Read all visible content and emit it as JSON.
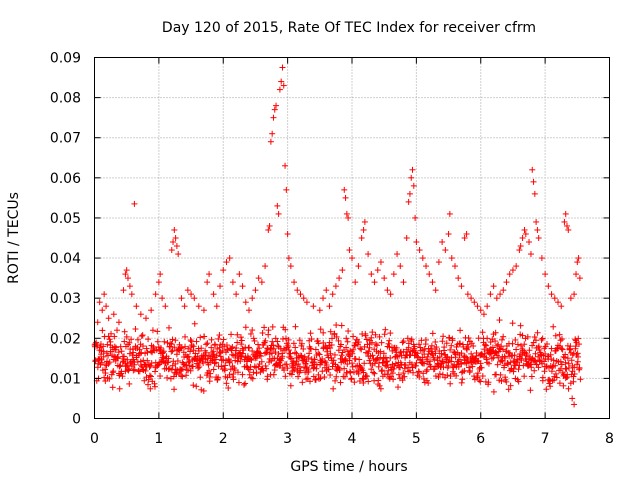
{
  "chart_data": {
    "type": "scatter",
    "title": "Day 120 of 2015, Rate Of TEC Index for receiver cfrm",
    "xlabel": "GPS time / hours",
    "ylabel": "ROTI / TECUs",
    "xlim": [
      0,
      8
    ],
    "ylim": [
      0,
      0.09
    ],
    "xticks": [
      0,
      1,
      2,
      3,
      4,
      5,
      6,
      7,
      8
    ],
    "xtick_labels": [
      "0",
      "1",
      "2",
      "3",
      "4",
      "5",
      "6",
      "7",
      "8"
    ],
    "yticks": [
      0,
      0.01,
      0.02,
      0.03,
      0.04,
      0.05,
      0.06,
      0.07,
      0.08,
      0.09
    ],
    "ytick_labels": [
      "0",
      "0.01",
      "0.02",
      "0.03",
      "0.04",
      "0.05",
      "0.06",
      "0.07",
      "0.08",
      "0.09"
    ],
    "grid": true,
    "marker": "plus",
    "color": "#ff0000",
    "series": [
      {
        "name": "ROTI",
        "x_range": [
          0.0,
          7.55
        ],
        "background_band": [
          0.006,
          0.024
        ],
        "points": [
          [
            0.05,
            0.024
          ],
          [
            0.08,
            0.029
          ],
          [
            0.12,
            0.027
          ],
          [
            0.15,
            0.031
          ],
          [
            0.18,
            0.028
          ],
          [
            0.22,
            0.025
          ],
          [
            0.3,
            0.026
          ],
          [
            0.38,
            0.024
          ],
          [
            0.45,
            0.032
          ],
          [
            0.48,
            0.036
          ],
          [
            0.5,
            0.037
          ],
          [
            0.52,
            0.035
          ],
          [
            0.55,
            0.033
          ],
          [
            0.58,
            0.031
          ],
          [
            0.62,
            0.0535
          ],
          [
            0.65,
            0.028
          ],
          [
            0.72,
            0.026
          ],
          [
            0.8,
            0.025
          ],
          [
            0.88,
            0.027
          ],
          [
            0.95,
            0.031
          ],
          [
            1.0,
            0.034
          ],
          [
            1.02,
            0.036
          ],
          [
            1.05,
            0.03
          ],
          [
            1.1,
            0.028
          ],
          [
            1.2,
            0.042
          ],
          [
            1.22,
            0.044
          ],
          [
            1.24,
            0.047
          ],
          [
            1.26,
            0.045
          ],
          [
            1.28,
            0.043
          ],
          [
            1.3,
            0.041
          ],
          [
            1.35,
            0.03
          ],
          [
            1.4,
            0.028
          ],
          [
            1.45,
            0.032
          ],
          [
            1.5,
            0.031
          ],
          [
            1.55,
            0.03
          ],
          [
            1.62,
            0.028
          ],
          [
            1.7,
            0.027
          ],
          [
            1.75,
            0.034
          ],
          [
            1.78,
            0.036
          ],
          [
            1.85,
            0.031
          ],
          [
            1.9,
            0.028
          ],
          [
            1.95,
            0.033
          ],
          [
            2.0,
            0.037
          ],
          [
            2.05,
            0.039
          ],
          [
            2.1,
            0.04
          ],
          [
            2.15,
            0.034
          ],
          [
            2.2,
            0.031
          ],
          [
            2.25,
            0.036
          ],
          [
            2.3,
            0.033
          ],
          [
            2.35,
            0.029
          ],
          [
            2.4,
            0.027
          ],
          [
            2.45,
            0.03
          ],
          [
            2.5,
            0.032
          ],
          [
            2.55,
            0.035
          ],
          [
            2.6,
            0.034
          ],
          [
            2.65,
            0.038
          ],
          [
            2.7,
            0.047
          ],
          [
            2.72,
            0.048
          ],
          [
            2.74,
            0.069
          ],
          [
            2.76,
            0.071
          ],
          [
            2.78,
            0.075
          ],
          [
            2.8,
            0.077
          ],
          [
            2.82,
            0.078
          ],
          [
            2.84,
            0.053
          ],
          [
            2.86,
            0.051
          ],
          [
            2.88,
            0.082
          ],
          [
            2.9,
            0.084
          ],
          [
            2.92,
            0.0875
          ],
          [
            2.94,
            0.083
          ],
          [
            2.96,
            0.063
          ],
          [
            2.98,
            0.057
          ],
          [
            3.0,
            0.046
          ],
          [
            3.02,
            0.04
          ],
          [
            3.05,
            0.038
          ],
          [
            3.1,
            0.034
          ],
          [
            3.15,
            0.032
          ],
          [
            3.2,
            0.031
          ],
          [
            3.25,
            0.03
          ],
          [
            3.3,
            0.029
          ],
          [
            3.4,
            0.028
          ],
          [
            3.5,
            0.027
          ],
          [
            3.55,
            0.03
          ],
          [
            3.6,
            0.032
          ],
          [
            3.65,
            0.028
          ],
          [
            3.7,
            0.031
          ],
          [
            3.75,
            0.033
          ],
          [
            3.8,
            0.035
          ],
          [
            3.85,
            0.037
          ],
          [
            3.88,
            0.057
          ],
          [
            3.9,
            0.055
          ],
          [
            3.92,
            0.051
          ],
          [
            3.94,
            0.05
          ],
          [
            3.96,
            0.042
          ],
          [
            4.0,
            0.04
          ],
          [
            4.05,
            0.034
          ],
          [
            4.1,
            0.038
          ],
          [
            4.15,
            0.045
          ],
          [
            4.18,
            0.047
          ],
          [
            4.2,
            0.049
          ],
          [
            4.25,
            0.041
          ],
          [
            4.3,
            0.036
          ],
          [
            4.35,
            0.034
          ],
          [
            4.4,
            0.037
          ],
          [
            4.45,
            0.039
          ],
          [
            4.5,
            0.035
          ],
          [
            4.55,
            0.032
          ],
          [
            4.6,
            0.031
          ],
          [
            4.65,
            0.036
          ],
          [
            4.7,
            0.041
          ],
          [
            4.75,
            0.038
          ],
          [
            4.8,
            0.034
          ],
          [
            4.85,
            0.045
          ],
          [
            4.88,
            0.054
          ],
          [
            4.9,
            0.056
          ],
          [
            4.92,
            0.06
          ],
          [
            4.94,
            0.062
          ],
          [
            4.96,
            0.058
          ],
          [
            4.98,
            0.05
          ],
          [
            5.0,
            0.044
          ],
          [
            5.05,
            0.042
          ],
          [
            5.1,
            0.04
          ],
          [
            5.15,
            0.038
          ],
          [
            5.2,
            0.036
          ],
          [
            5.25,
            0.034
          ],
          [
            5.3,
            0.032
          ],
          [
            5.35,
            0.039
          ],
          [
            5.4,
            0.044
          ],
          [
            5.45,
            0.042
          ],
          [
            5.5,
            0.046
          ],
          [
            5.52,
            0.051
          ],
          [
            5.55,
            0.04
          ],
          [
            5.6,
            0.038
          ],
          [
            5.65,
            0.035
          ],
          [
            5.7,
            0.033
          ],
          [
            5.75,
            0.045
          ],
          [
            5.78,
            0.046
          ],
          [
            5.8,
            0.031
          ],
          [
            5.85,
            0.03
          ],
          [
            5.9,
            0.029
          ],
          [
            5.95,
            0.028
          ],
          [
            6.0,
            0.027
          ],
          [
            6.05,
            0.026
          ],
          [
            6.1,
            0.028
          ],
          [
            6.15,
            0.031
          ],
          [
            6.2,
            0.033
          ],
          [
            6.25,
            0.03
          ],
          [
            6.3,
            0.031
          ],
          [
            6.35,
            0.032
          ],
          [
            6.4,
            0.034
          ],
          [
            6.45,
            0.036
          ],
          [
            6.5,
            0.037
          ],
          [
            6.55,
            0.038
          ],
          [
            6.6,
            0.042
          ],
          [
            6.62,
            0.043
          ],
          [
            6.65,
            0.045
          ],
          [
            6.68,
            0.047
          ],
          [
            6.7,
            0.046
          ],
          [
            6.75,
            0.044
          ],
          [
            6.78,
            0.041
          ],
          [
            6.8,
            0.062
          ],
          [
            6.82,
            0.059
          ],
          [
            6.84,
            0.056
          ],
          [
            6.86,
            0.049
          ],
          [
            6.88,
            0.047
          ],
          [
            6.9,
            0.045
          ],
          [
            6.95,
            0.04
          ],
          [
            7.0,
            0.036
          ],
          [
            7.05,
            0.033
          ],
          [
            7.1,
            0.031
          ],
          [
            7.15,
            0.03
          ],
          [
            7.2,
            0.029
          ],
          [
            7.25,
            0.028
          ],
          [
            7.3,
            0.049
          ],
          [
            7.32,
            0.051
          ],
          [
            7.34,
            0.048
          ],
          [
            7.36,
            0.047
          ],
          [
            7.4,
            0.03
          ],
          [
            7.45,
            0.031
          ],
          [
            7.48,
            0.036
          ],
          [
            7.5,
            0.039
          ],
          [
            7.52,
            0.04
          ],
          [
            7.54,
            0.035
          ],
          [
            7.45,
            0.0035
          ],
          [
            7.42,
            0.005
          ]
        ]
      }
    ]
  }
}
